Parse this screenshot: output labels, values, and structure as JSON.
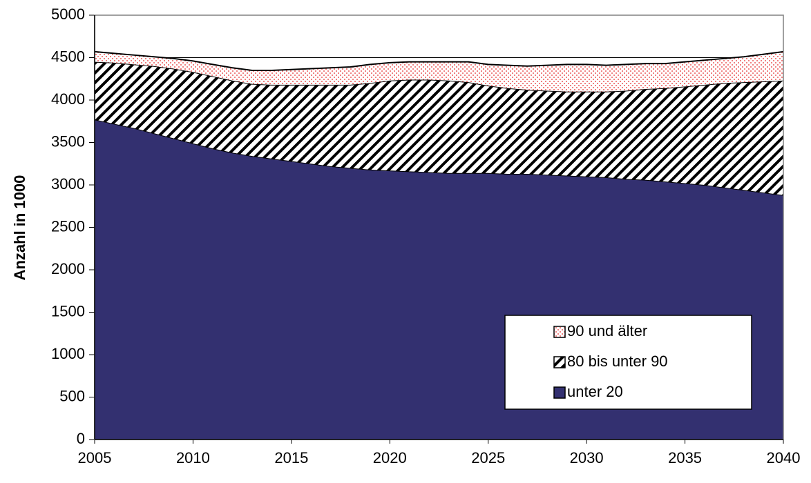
{
  "chart_data": {
    "type": "stacked_area",
    "ylabel": "Anzahl in 1000",
    "x": [
      2005,
      2006,
      2007,
      2008,
      2009,
      2010,
      2011,
      2012,
      2013,
      2014,
      2015,
      2016,
      2017,
      2018,
      2019,
      2020,
      2021,
      2022,
      2023,
      2024,
      2025,
      2026,
      2027,
      2028,
      2029,
      2030,
      2031,
      2032,
      2033,
      2034,
      2035,
      2036,
      2037,
      2038,
      2039,
      2040
    ],
    "series": [
      {
        "name": "unter 20",
        "color": "#333070",
        "values": [
          3770,
          3720,
          3670,
          3610,
          3550,
          3490,
          3430,
          3380,
          3340,
          3310,
          3280,
          3250,
          3220,
          3200,
          3180,
          3170,
          3160,
          3150,
          3140,
          3140,
          3140,
          3130,
          3130,
          3120,
          3110,
          3100,
          3090,
          3070,
          3060,
          3040,
          3020,
          3000,
          2970,
          2940,
          2910,
          2880
        ]
      },
      {
        "name": "80 bis unter 90",
        "color": "#000000",
        "values": [
          680,
          720,
          750,
          790,
          820,
          840,
          850,
          850,
          850,
          870,
          900,
          930,
          960,
          980,
          1020,
          1060,
          1080,
          1090,
          1090,
          1070,
          1030,
          1010,
          990,
          990,
          990,
          1000,
          1010,
          1040,
          1070,
          1100,
          1140,
          1180,
          1230,
          1270,
          1310,
          1350
        ]
      },
      {
        "name": "90 und älter",
        "color": "#f08080",
        "values": [
          120,
          110,
          110,
          110,
          120,
          130,
          140,
          150,
          160,
          170,
          180,
          190,
          200,
          210,
          220,
          210,
          210,
          210,
          220,
          240,
          250,
          270,
          280,
          300,
          320,
          320,
          310,
          310,
          300,
          290,
          290,
          290,
          290,
          300,
          320,
          340
        ]
      }
    ],
    "xlim": [
      2005,
      2040
    ],
    "xticks": [
      2005,
      2010,
      2015,
      2020,
      2025,
      2030,
      2035,
      2040
    ],
    "ylim": [
      0,
      5000
    ],
    "yticks": [
      0,
      500,
      1000,
      1500,
      2000,
      2500,
      3000,
      3500,
      4000,
      4500,
      5000
    ],
    "grid": true,
    "legend": "lower right"
  }
}
